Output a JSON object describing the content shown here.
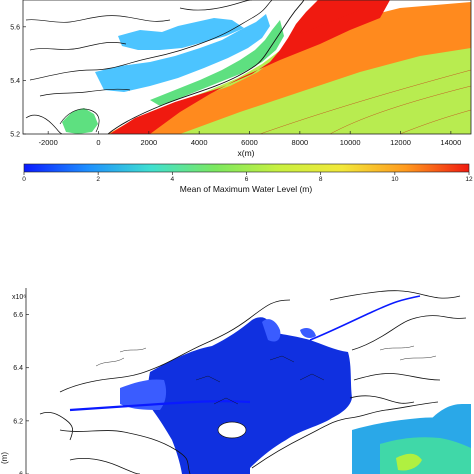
{
  "chart_data": [
    {
      "type": "heatmap",
      "title": "",
      "xlabel": "x(m)",
      "ylabel": "",
      "xlim": [
        -3000,
        14800
      ],
      "ylim": [
        5.2,
        5.7
      ],
      "x_ticks": [
        "-2000",
        "0",
        "2000",
        "4000",
        "6000",
        "8000",
        "10000",
        "12000",
        "14000"
      ],
      "y_ticks": [
        "5.2",
        "5.4",
        "5.6"
      ],
      "colorbar": {
        "label": "Mean of Maximum Water Level (m)",
        "min": 0,
        "max": 12,
        "ticks": [
          "0",
          "2",
          "4",
          "6",
          "8",
          "10",
          "12"
        ],
        "colors": [
          "#0a1aff",
          "#1e8fff",
          "#3fe0d0",
          "#7be860",
          "#c8f040",
          "#f2e83a",
          "#ff9a1e",
          "#f01a10"
        ]
      },
      "colors": {
        "land": "#ffffff",
        "offshore_high": "#f01a10",
        "offshore_mid": "#ff8a1e",
        "shelf": "#b8ec50",
        "coastal_low": "#5ee080",
        "inner_bay": "#4cc4ff"
      }
    },
    {
      "type": "heatmap",
      "title": "",
      "xlabel": "",
      "ylabel": "(m)",
      "y_exponent": "x10⁶",
      "ylim": [
        6.0,
        6.7
      ],
      "y_ticks": [
        "6",
        "6.2",
        "6.4",
        "6.6"
      ],
      "colors": {
        "land": "#ffffff",
        "inundation": "#1030e0",
        "inundation_edge": "#3a5cff",
        "sea_low": "#2aa8e8",
        "sea_mid": "#40d8a8",
        "sea_high": "#b0f040"
      }
    }
  ]
}
